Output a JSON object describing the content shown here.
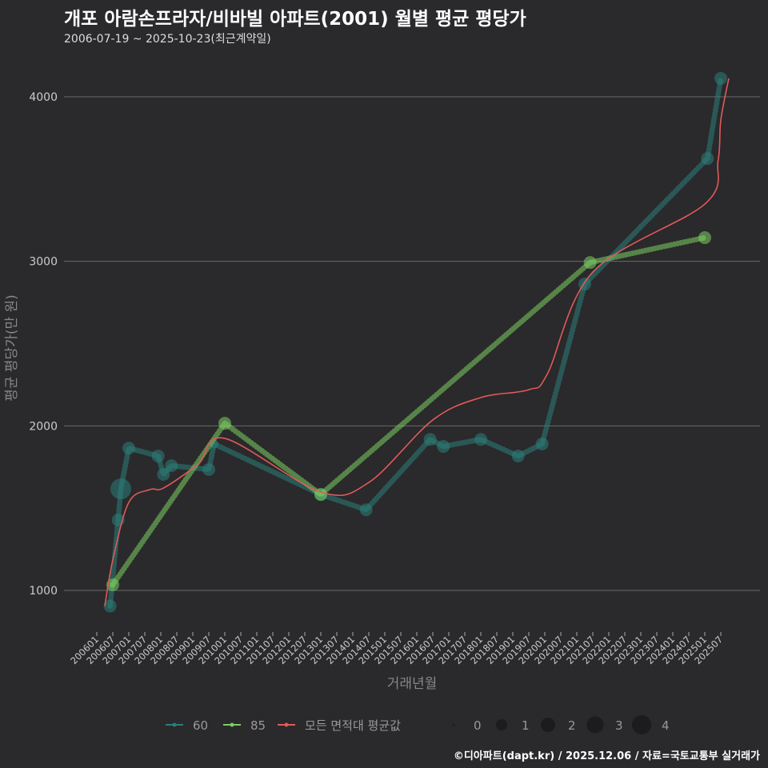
{
  "title": "개포 아람손프라자/비바빌 아파트(2001) 월별 평균 평당가",
  "subtitle": "2006-07-19 ~ 2025-10-23(최근계약일)",
  "footer": "©디아파트(dapt.kr) / 2025.12.06 / 자료=국토교통부 실거래가",
  "chart_data": {
    "type": "line",
    "xlabel": "거래년월",
    "ylabel": "평균 평당가(만 원)",
    "ylim": [
      800,
      4150
    ],
    "yticks": [
      1000,
      2000,
      3000,
      4000
    ],
    "x_start": "2005-12",
    "x_end": "2025-11",
    "x_ticks": [
      "200601",
      "200607",
      "200701",
      "200707",
      "200801",
      "200807",
      "200901",
      "200907",
      "201001",
      "201007",
      "201101",
      "201107",
      "201201",
      "201207",
      "201301",
      "201307",
      "201401",
      "201407",
      "201501",
      "201507",
      "201601",
      "201607",
      "201701",
      "201707",
      "201801",
      "201807",
      "201901",
      "201907",
      "202001",
      "202007",
      "202101",
      "202107",
      "202201",
      "202207",
      "202301",
      "202307",
      "202401",
      "202407",
      "202501",
      "202507"
    ],
    "grid": true,
    "legend_placement": "bottom",
    "colors": {
      "60": "#2a7f7a",
      "85": "#7ccf63",
      "avg": "#e05a5a"
    },
    "series": [
      {
        "name": "60",
        "points": [
          [
            "2006-06",
            905,
            2
          ],
          [
            "2006-09",
            1428,
            2
          ],
          [
            "2006-10",
            1617,
            4
          ],
          [
            "2007-01",
            1865,
            2
          ],
          [
            "2007-12",
            1817,
            2
          ],
          [
            "2008-02",
            1705,
            2
          ],
          [
            "2008-05",
            1758,
            2
          ],
          [
            "2009-07",
            1735,
            2
          ],
          [
            "2009-09",
            1890,
            1
          ],
          [
            "2013-01",
            1583,
            2
          ],
          [
            "2014-06",
            1490,
            2
          ],
          [
            "2016-06",
            1918,
            2
          ],
          [
            "2016-11",
            1875,
            2
          ],
          [
            "2018-01",
            1918,
            2
          ],
          [
            "2019-03",
            1817,
            2
          ],
          [
            "2019-12",
            1890,
            2
          ],
          [
            "2021-04",
            2862,
            2
          ],
          [
            "2025-02",
            3625,
            2
          ],
          [
            "2025-07",
            4112,
            2
          ]
        ]
      },
      {
        "name": "85",
        "points": [
          [
            "2006-07",
            1034,
            2
          ],
          [
            "2010-01",
            2016,
            2
          ],
          [
            "2013-01",
            1583,
            2
          ],
          [
            "2021-06",
            2993,
            2
          ],
          [
            "2025-01",
            3144,
            2
          ]
        ]
      },
      {
        "name": "모든 면적대 평균값",
        "points": [
          [
            "2006-04",
            905
          ],
          [
            "2006-07",
            1185
          ],
          [
            "2007-01",
            1535
          ],
          [
            "2007-09",
            1613
          ],
          [
            "2008-02",
            1622
          ],
          [
            "2009-03",
            1768
          ],
          [
            "2010-01",
            1924
          ],
          [
            "2013-01",
            1598
          ],
          [
            "2014-07",
            1656
          ],
          [
            "2016-07",
            2036
          ],
          [
            "2018-01",
            2172
          ],
          [
            "2019-07",
            2220
          ],
          [
            "2020-02",
            2317
          ],
          [
            "2021-07",
            2935
          ],
          [
            "2025-01",
            3348
          ],
          [
            "2025-06",
            3615
          ],
          [
            "2025-07",
            3858
          ],
          [
            "2025-10",
            4112
          ]
        ]
      }
    ],
    "size_legend": [
      "0",
      "1",
      "2",
      "3",
      "4"
    ]
  }
}
